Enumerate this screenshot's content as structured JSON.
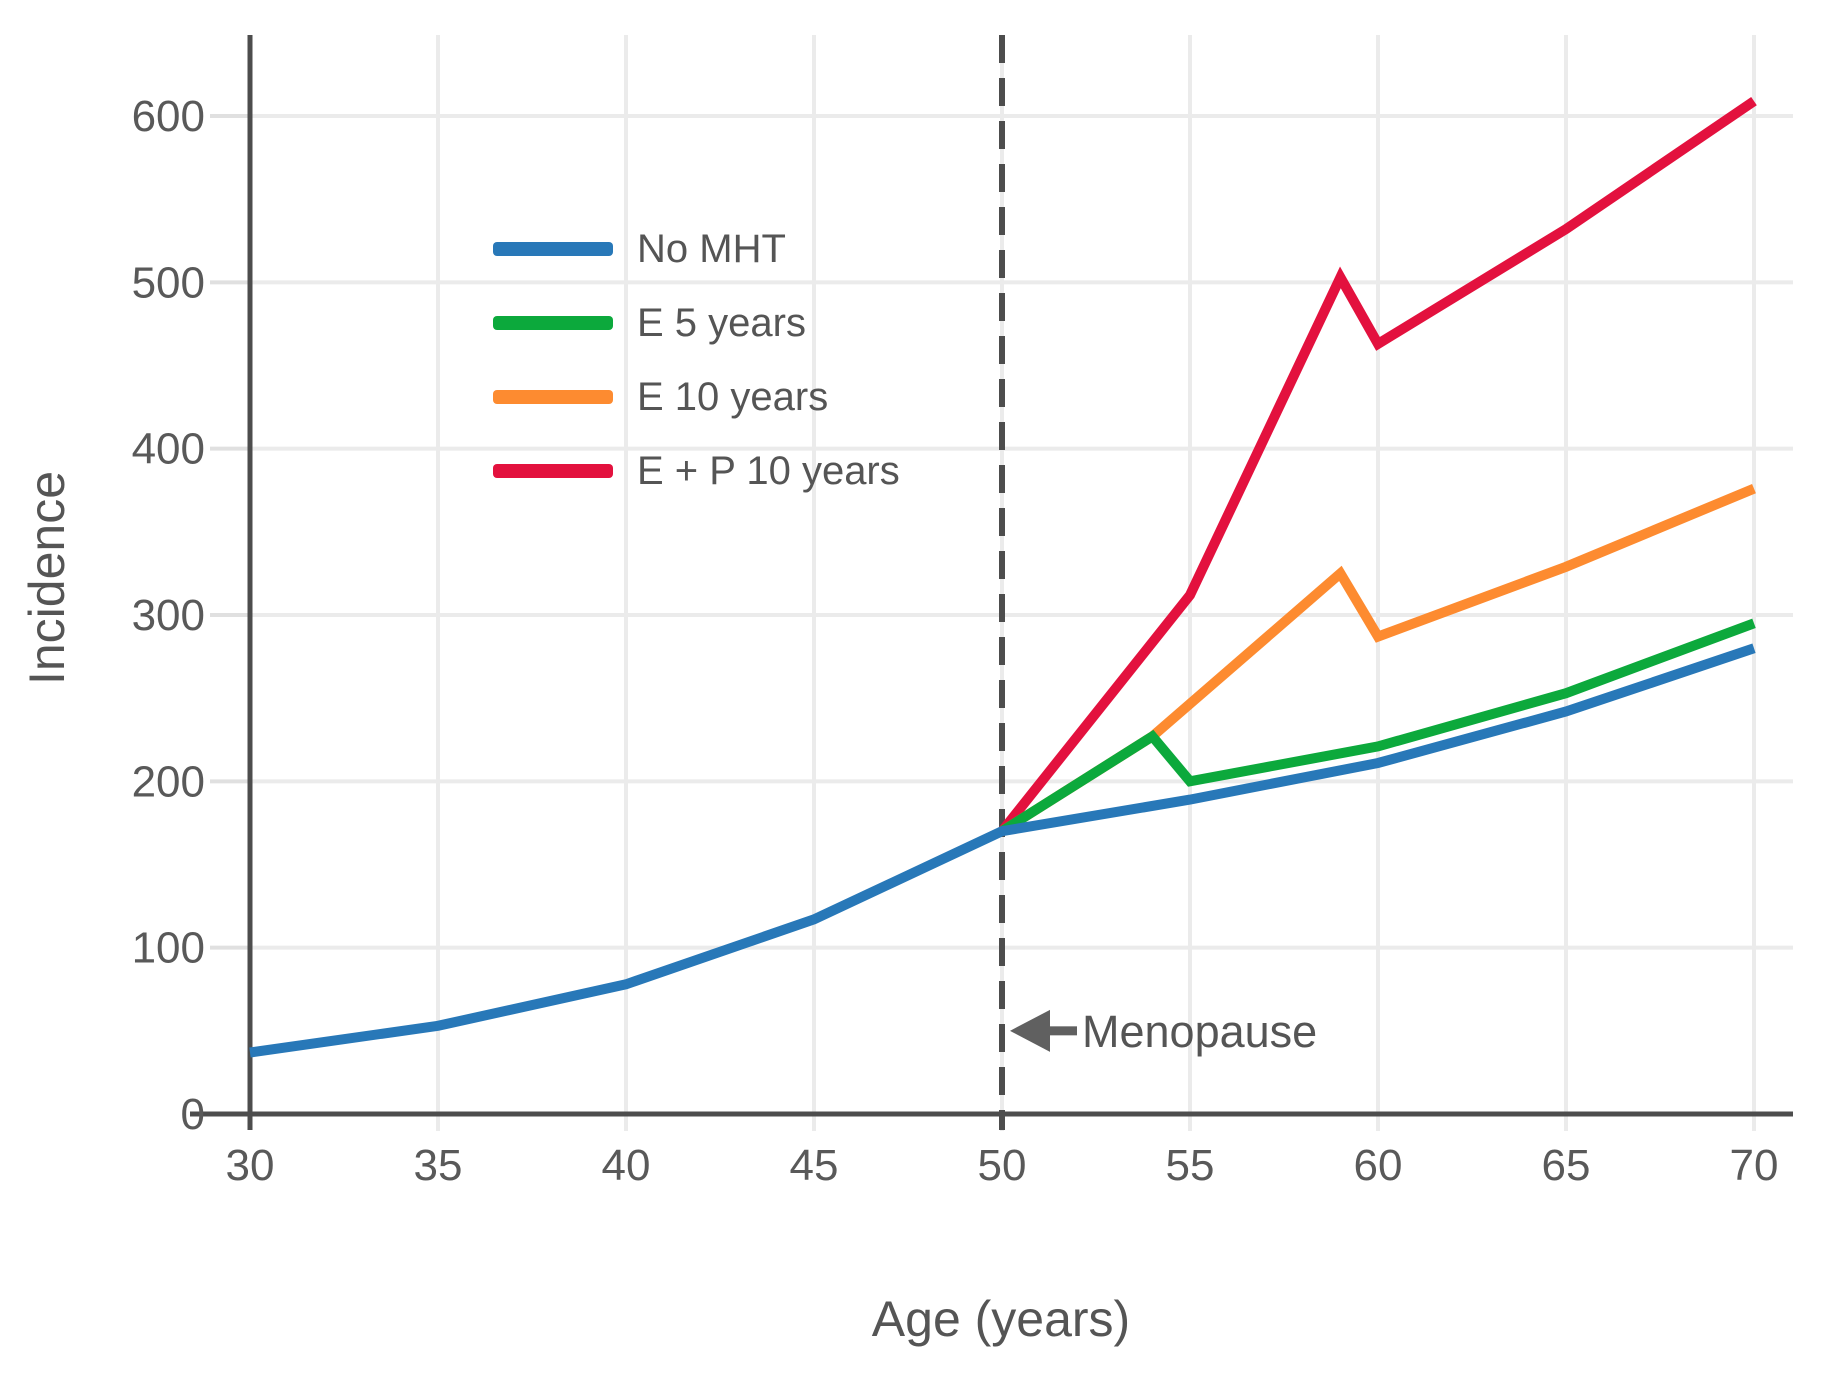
{
  "figure": {
    "background": "#ffffff",
    "axis_color": "#4d4d4d",
    "grid_color": "#ebebeb",
    "tick_color": "#e0e0e0",
    "tick_label_color": "#595959",
    "label_color": "#555555",
    "annotation_color": "#606060"
  },
  "chart_data": {
    "type": "line",
    "title": "",
    "xlabel": "Age (years)",
    "ylabel": "Incidence",
    "xticks": [
      30,
      35,
      40,
      45,
      50,
      55,
      60,
      65,
      70
    ],
    "yticks": [
      0,
      100,
      200,
      300,
      400,
      500,
      600
    ],
    "xlim": [
      28.4,
      71.1
    ],
    "ylim": [
      0,
      649
    ],
    "grid": true,
    "legend_position": "upper-left-inside",
    "series": [
      {
        "name": "No MHT",
        "color": "#2878b8",
        "points": [
          [
            30,
            37
          ],
          [
            35,
            53
          ],
          [
            40,
            78
          ],
          [
            45,
            117
          ],
          [
            50,
            170
          ],
          [
            55,
            189
          ],
          [
            60,
            211
          ],
          [
            65,
            242
          ],
          [
            70,
            280
          ]
        ]
      },
      {
        "name": "E 5 years",
        "color": "#0ca93c",
        "points": [
          [
            50,
            170
          ],
          [
            54,
            227
          ],
          [
            55,
            200
          ],
          [
            60,
            221
          ],
          [
            65,
            253
          ],
          [
            70,
            295
          ]
        ]
      },
      {
        "name": "E 10 years",
        "color": "#fd8b30",
        "points": [
          [
            50,
            170
          ],
          [
            54,
            227
          ],
          [
            59,
            325
          ],
          [
            60,
            287
          ],
          [
            65,
            329
          ],
          [
            70,
            376
          ]
        ]
      },
      {
        "name": "E + P 10 years",
        "color": "#e3113e",
        "points": [
          [
            50,
            170
          ],
          [
            55,
            312
          ],
          [
            59,
            503
          ],
          [
            60,
            463
          ],
          [
            65,
            532
          ],
          [
            70,
            609
          ]
        ]
      }
    ],
    "vline": {
      "x": 50,
      "style": "dashed",
      "color": "#4d4d4d"
    },
    "annotation": {
      "text": "Menopause",
      "arrow_dir": "left",
      "at_x": 50,
      "at_y": 50
    }
  }
}
